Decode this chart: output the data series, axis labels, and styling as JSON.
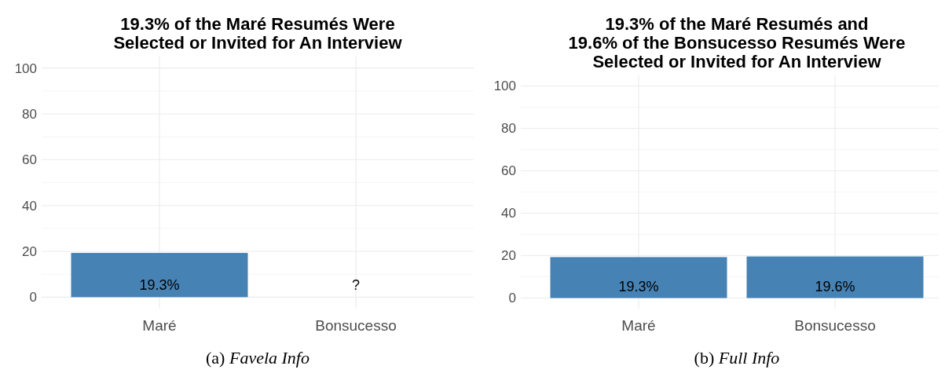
{
  "chart_data": [
    {
      "type": "bar",
      "title": "19.3% of the Maré Resumés Were\nSelected or Invited for An Interview",
      "categories": [
        "Maré",
        "Bonsucesso"
      ],
      "values": [
        19.3,
        null
      ],
      "value_labels": [
        "19.3%",
        "?"
      ],
      "color": "#4682b4",
      "ylim": [
        -5,
        105
      ],
      "yticks": [
        0,
        20,
        40,
        60,
        80,
        100
      ],
      "grid": true,
      "annotations": [
        "(a) Favela Info"
      ]
    },
    {
      "type": "bar",
      "title": "19.3% of the Maré Resumés and\n19.6% of the Bonsucesso Resumés Were\nSelected or Invited for An Interview",
      "categories": [
        "Maré",
        "Bonsucesso"
      ],
      "values": [
        19.3,
        19.6
      ],
      "value_labels": [
        "19.3%",
        "19.6%"
      ],
      "color": "#4682b4",
      "ylim": [
        -5,
        105
      ],
      "yticks": [
        0,
        20,
        40,
        60,
        80,
        100
      ],
      "grid": true,
      "annotations": [
        "(b) Full Info"
      ]
    }
  ]
}
